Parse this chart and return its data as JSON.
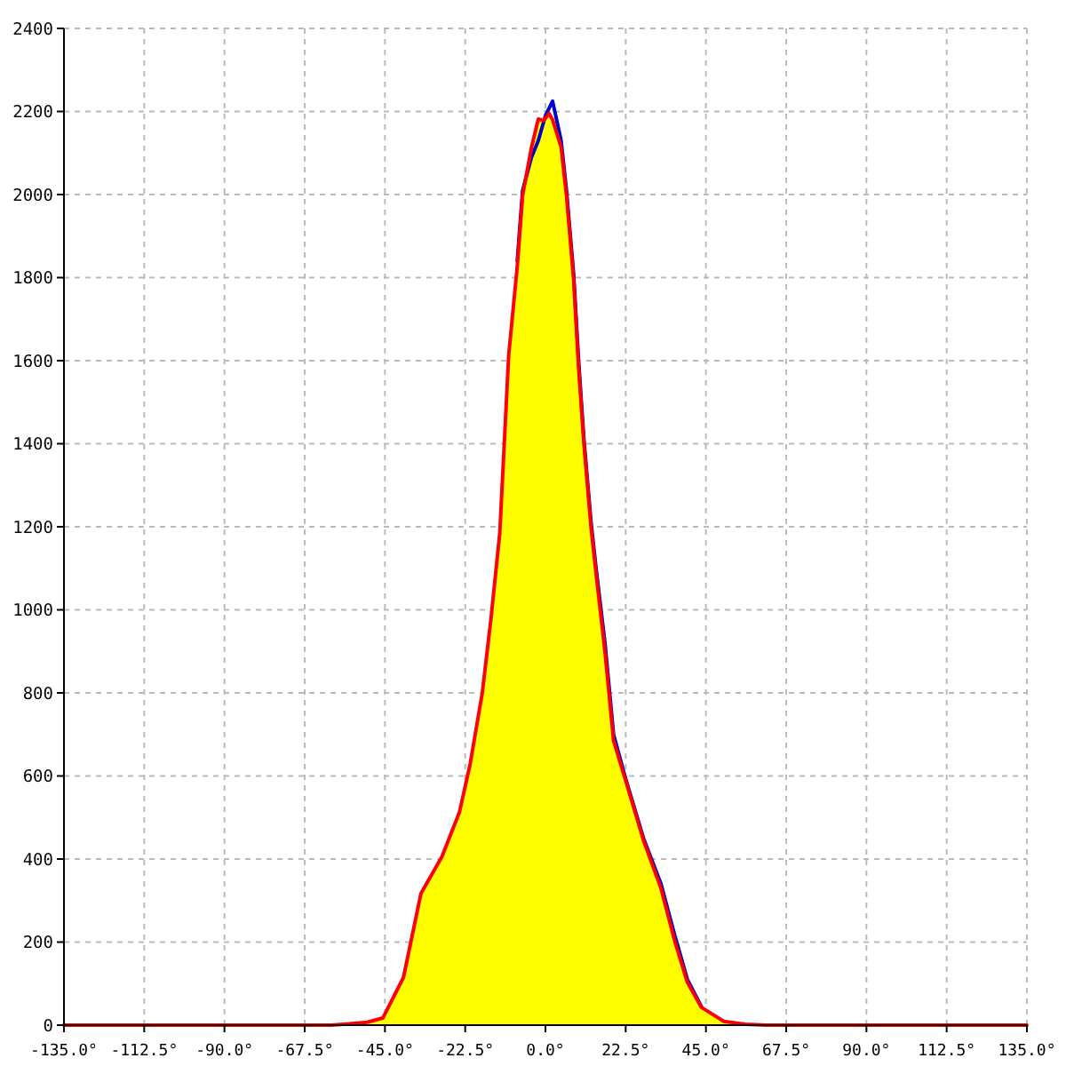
{
  "chart_data": {
    "type": "area",
    "xlim": [
      -135,
      135
    ],
    "ylim": [
      0,
      2400
    ],
    "xticks": [
      {
        "value": -135,
        "label": "-135.0°"
      },
      {
        "value": -112.5,
        "label": "-112.5°"
      },
      {
        "value": -90,
        "label": "-90.0°"
      },
      {
        "value": -67.5,
        "label": "-67.5°"
      },
      {
        "value": -45,
        "label": "-45.0°"
      },
      {
        "value": -22.5,
        "label": "-22.5°"
      },
      {
        "value": 0,
        "label": "0.0°"
      },
      {
        "value": 22.5,
        "label": "22.5°"
      },
      {
        "value": 45,
        "label": "45.0°"
      },
      {
        "value": 67.5,
        "label": "67.5°"
      },
      {
        "value": 90,
        "label": "90.0°"
      },
      {
        "value": 112.5,
        "label": "112.5°"
      },
      {
        "value": 135,
        "label": "135.0°"
      }
    ],
    "yticks": [
      0,
      200,
      400,
      600,
      800,
      1000,
      1200,
      1400,
      1600,
      1800,
      2000,
      2200,
      2400
    ],
    "grid": true,
    "marker": "none",
    "line_style": "solid",
    "series": [
      {
        "color": "#ffff00",
        "x": [
          -60,
          -55,
          -50,
          -45.6,
          -39.8,
          -34.9,
          -29,
          -24.1,
          -21.1,
          -17.7,
          -15.2,
          -12.8,
          -10.3,
          -7.9,
          -6.4,
          -3.9,
          -2,
          -0.5,
          1,
          2,
          4.4,
          5.9,
          7.9,
          9.3,
          10.8,
          12.8,
          14.2,
          16.7,
          19.1,
          22.6,
          27.5,
          32.4,
          36.3,
          39.8,
          43.7,
          50,
          56,
          62
        ],
        "values": [
          0,
          3,
          7,
          17,
          115,
          317,
          406,
          513,
          629,
          800,
          984,
          1185,
          1613,
          1827,
          1998,
          2114,
          2182,
          2178,
          2195,
          2180,
          2114,
          1998,
          1797,
          1583,
          1399,
          1198,
          1087,
          899,
          685,
          586,
          445,
          329,
          201,
          103,
          43,
          9,
          2,
          0
        ]
      },
      {
        "type": "line",
        "color": "#0000cc",
        "x": [
          -7.9,
          -6.4,
          -3.9,
          -2,
          0,
          2,
          4.4,
          5.9,
          7.9,
          9.3,
          10.8,
          12.8,
          14.2,
          16.7,
          19.1,
          22.6,
          27.5,
          32.4,
          36.3,
          39.8,
          43.7
        ],
        "values": [
          1840,
          2010,
          2090,
          2130,
          2190,
          2225,
          2130,
          2010,
          1810,
          1600,
          1410,
          1210,
          1100,
          920,
          700,
          590,
          450,
          340,
          215,
          110,
          45
        ]
      },
      {
        "type": "line",
        "color": "#ff0000",
        "x": [
          -135,
          -60,
          -55,
          -50,
          -45.6,
          -39.8,
          -34.9,
          -29,
          -24.1,
          -21.1,
          -17.7,
          -15.2,
          -12.8,
          -10.3,
          -7.9,
          -6.4,
          -3.9,
          -2,
          -0.5,
          1,
          2,
          4.4,
          5.9,
          7.9,
          9.3,
          10.8,
          12.8,
          14.2,
          16.7,
          19.1,
          22.6,
          27.5,
          32.4,
          36.3,
          39.8,
          43.7,
          50,
          56,
          62,
          135
        ],
        "values": [
          0,
          0,
          3,
          7,
          17,
          115,
          317,
          406,
          513,
          629,
          800,
          984,
          1185,
          1613,
          1827,
          1998,
          2114,
          2182,
          2178,
          2195,
          2180,
          2114,
          1998,
          1797,
          1583,
          1399,
          1198,
          1087,
          899,
          685,
          586,
          445,
          329,
          201,
          103,
          43,
          9,
          2,
          0,
          0
        ]
      }
    ]
  }
}
